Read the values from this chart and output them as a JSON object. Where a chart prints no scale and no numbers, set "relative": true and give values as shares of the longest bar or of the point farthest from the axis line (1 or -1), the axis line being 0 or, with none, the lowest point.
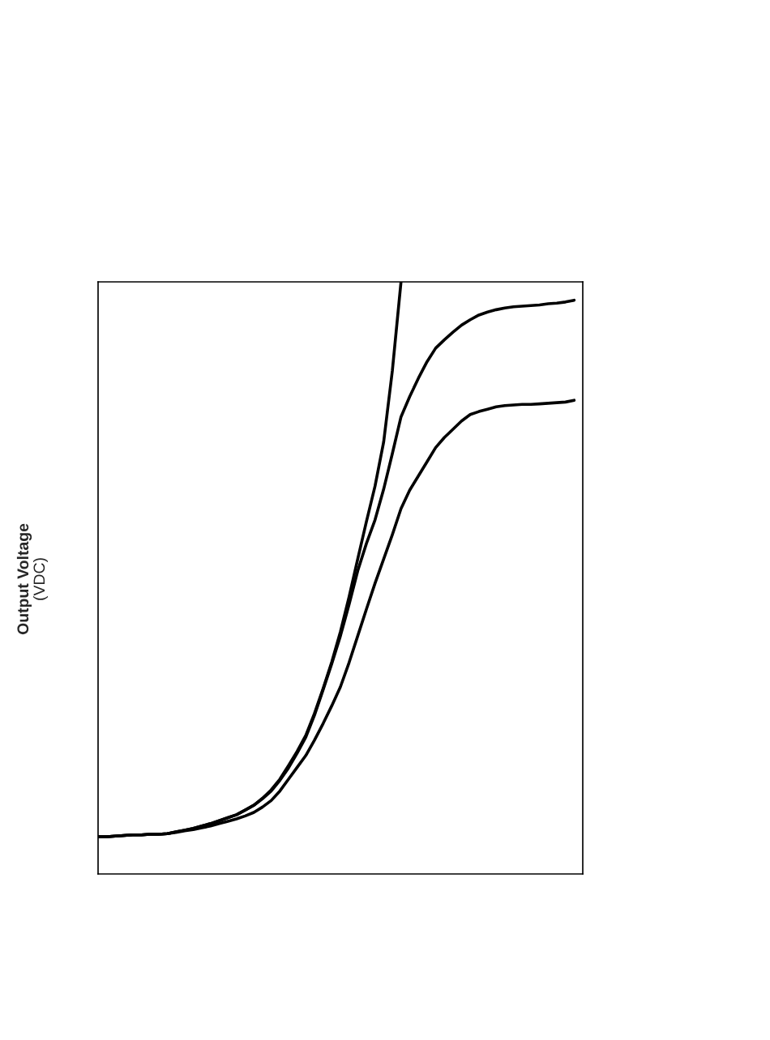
{
  "chart_data": {
    "type": "line",
    "ylabel": "Output Voltage\n(VDC)",
    "relative": true,
    "grid": false,
    "legend": false,
    "marker": "none",
    "line_style": "solid",
    "categories": [
      null,
      null,
      null,
      null,
      null,
      null,
      null,
      null,
      null,
      null,
      null,
      null,
      null,
      null,
      null,
      null,
      null,
      null,
      null,
      null,
      null,
      null,
      null,
      null,
      null,
      null,
      null,
      null,
      null,
      null,
      null,
      null,
      null,
      null,
      null,
      null,
      null,
      null,
      null,
      null,
      null,
      null,
      null,
      null,
      null,
      null,
      null,
      null,
      null,
      null,
      null,
      null,
      null,
      null,
      null,
      null,
      null
    ],
    "series": [
      {
        "color": "#000000",
        "values": [
          0.063,
          0.063,
          0.064,
          0.065,
          0.066,
          0.066,
          0.067,
          0.067,
          0.068,
          0.071,
          0.074,
          0.077,
          0.081,
          0.085,
          0.09,
          0.095,
          0.1,
          0.108,
          0.116,
          0.128,
          0.142,
          0.16,
          0.183,
          0.207,
          0.234,
          0.271,
          0.313,
          0.358,
          0.409,
          0.468,
          0.532,
          0.595,
          0.655,
          0.73,
          0.85,
          1.0,
          null,
          null,
          null,
          null,
          null,
          null,
          null,
          null,
          null,
          null,
          null,
          null,
          null,
          null,
          null,
          null,
          null,
          null,
          null,
          null,
          null
        ]
      },
      {
        "color": "#000000",
        "values": [
          0.063,
          0.063,
          0.064,
          0.065,
          0.066,
          0.066,
          0.067,
          0.067,
          0.068,
          0.071,
          0.074,
          0.077,
          0.081,
          0.085,
          0.09,
          0.095,
          0.1,
          0.108,
          0.116,
          0.127,
          0.14,
          0.158,
          0.179,
          0.204,
          0.231,
          0.268,
          0.311,
          0.355,
          0.402,
          0.455,
          0.512,
          0.558,
          0.598,
          0.65,
          0.71,
          0.772,
          0.806,
          0.837,
          0.865,
          0.888,
          0.902,
          0.915,
          0.927,
          0.936,
          0.944,
          0.949,
          0.953,
          0.956,
          0.958,
          0.959,
          0.96,
          0.961,
          0.963,
          0.964,
          0.966,
          0.969,
          null
        ]
      },
      {
        "color": "#000000",
        "values": [
          0.063,
          0.063,
          0.064,
          0.065,
          0.066,
          0.066,
          0.067,
          0.067,
          0.068,
          0.07,
          0.073,
          0.075,
          0.078,
          0.081,
          0.085,
          0.089,
          0.093,
          0.098,
          0.104,
          0.113,
          0.124,
          0.14,
          0.16,
          0.18,
          0.2,
          0.226,
          0.254,
          0.284,
          0.316,
          0.357,
          0.402,
          0.447,
          0.491,
          0.532,
          0.573,
          0.617,
          0.648,
          0.672,
          0.696,
          0.72,
          0.737,
          0.751,
          0.765,
          0.776,
          0.781,
          0.785,
          0.789,
          0.791,
          0.792,
          0.793,
          0.793,
          0.794,
          0.795,
          0.796,
          0.797,
          0.8,
          null
        ]
      }
    ]
  }
}
